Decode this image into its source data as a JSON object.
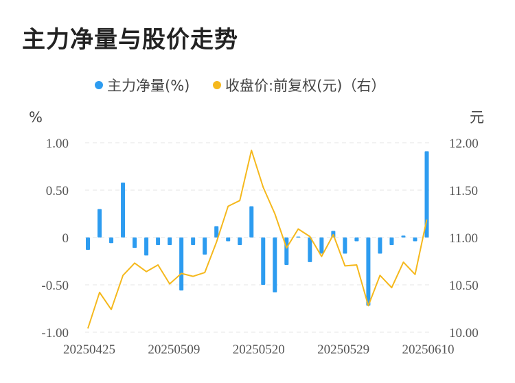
{
  "title": "主力净量与股价走势",
  "colors": {
    "bar": "#2d9cf0",
    "line": "#f5b81c",
    "grid": "#e4e4e4",
    "text": "#555555"
  },
  "chart_data": {
    "type": "bar",
    "title": "主力净量与股价走势",
    "legend": [
      "主力净量(%)",
      "收盘价:前复权(元)（右）"
    ],
    "legend_position": "top-center",
    "y_left_unit": "%",
    "y_right_unit": "元",
    "ylim_left": [
      -1.0,
      1.0
    ],
    "ylim_right": [
      10.0,
      12.0
    ],
    "yticks_left": [
      "1.00",
      "0.50",
      "0",
      "-0.50",
      "-1.00"
    ],
    "yticks_right": [
      "12.00",
      "11.50",
      "11.00",
      "10.50",
      "10.00"
    ],
    "xtick_labels": [
      {
        "index": 0,
        "label": "20250425"
      },
      {
        "index": 10,
        "label": "20250509"
      },
      {
        "index": 20,
        "label": "20250520"
      },
      {
        "index": 30,
        "label": "20250529"
      },
      {
        "index": 40,
        "label": "20250610"
      }
    ],
    "series": [
      {
        "name": "主力净量(%)",
        "type": "bar",
        "axis": "left",
        "values": [
          -0.13,
          0.3,
          -0.06,
          0.58,
          -0.11,
          -0.19,
          -0.08,
          -0.08,
          -0.56,
          -0.08,
          -0.18,
          0.12,
          -0.04,
          -0.08,
          0.33,
          -0.5,
          -0.58,
          -0.29,
          0.01,
          -0.26,
          -0.17,
          0.07,
          -0.17,
          -0.04,
          -0.72,
          -0.17,
          -0.08,
          0.02,
          -0.04,
          0.91
        ]
      },
      {
        "name": "收盘价:前复权(元)（右）",
        "type": "line",
        "axis": "right",
        "values": [
          10.04,
          10.42,
          10.24,
          10.6,
          10.73,
          10.64,
          10.71,
          10.51,
          10.62,
          10.59,
          10.63,
          10.95,
          11.33,
          11.39,
          11.92,
          11.53,
          11.25,
          10.89,
          11.09,
          11.01,
          10.8,
          11.03,
          10.7,
          10.71,
          10.28,
          10.6,
          10.47,
          10.74,
          10.61,
          11.19
        ]
      }
    ]
  }
}
